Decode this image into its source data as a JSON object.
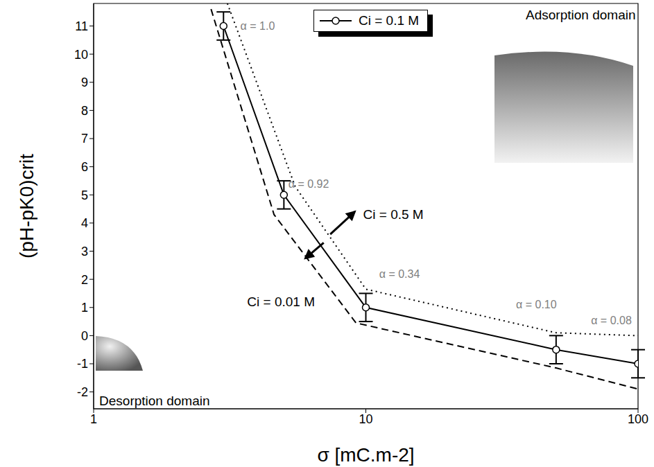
{
  "chart_data": {
    "type": "line",
    "log": "x",
    "grid": false,
    "legend": "top",
    "xlabel": "σ [mC.m-2]",
    "ylabel": "(pH-pK0)crit",
    "xlim": [
      1,
      100
    ],
    "xticks": [
      1,
      10,
      100
    ],
    "ylim": [
      -2.6,
      11.8
    ],
    "yticks": [
      -2,
      -1,
      0,
      1,
      2,
      3,
      4,
      5,
      6,
      7,
      8,
      9,
      10,
      11
    ],
    "series": [
      {
        "name": "Ci = 0.1 M",
        "color": "#000000",
        "line_style": "solid",
        "marker": "circle",
        "x": [
          3,
          5,
          10,
          50,
          100
        ],
        "values": [
          11,
          5,
          1,
          -0.5,
          -1
        ],
        "errors": [
          0.5,
          0.5,
          0.5,
          0.5,
          0.5
        ]
      },
      {
        "name": "Ci = 0.5 M",
        "color": "#000000",
        "line_style": "dotted",
        "x": [
          3.1,
          5.5,
          10,
          50,
          100
        ],
        "values": [
          11.8,
          5.3,
          1.65,
          0.1,
          0
        ]
      },
      {
        "name": "Ci = 0.01 M",
        "color": "#000000",
        "line_style": "dashed",
        "x": [
          2.7,
          4.6,
          9.2,
          50,
          100
        ],
        "values": [
          11.6,
          4.3,
          0.45,
          -1.15,
          -1.9
        ]
      }
    ],
    "annotations": [
      {
        "text": "α = 1.0",
        "x": 3.4,
        "y": 11,
        "color": "#808080"
      },
      {
        "text": "α = 0.92",
        "x": 5.1,
        "y": 5.4,
        "color": "#808080"
      },
      {
        "text": "α = 0.34",
        "x": 11,
        "y": 2.2,
        "color": "#808080"
      },
      {
        "text": "α = 0.10",
        "x": 35,
        "y": 1.1,
        "color": "#808080"
      },
      {
        "text": "α = 0.08",
        "x": 66,
        "y": 0.55,
        "color": "#808080"
      },
      {
        "text": "Ci = 0.5 M",
        "x": 9.6,
        "y": 4.3,
        "color": "#000000",
        "arrow_from": [
          7.4,
          3.6
        ],
        "arrow_to": [
          9.1,
          4.4
        ]
      },
      {
        "text": "Ci = 0.01 M",
        "x": 3.6,
        "y": 1.2,
        "color": "#000000",
        "arrow_from": [
          7.0,
          3.3
        ],
        "arrow_to": [
          6.0,
          2.75
        ]
      },
      {
        "text": "Adsorption domain",
        "x": 38,
        "y": 11.4,
        "color": "#000000"
      },
      {
        "text": "Desorption domain",
        "x": 1.03,
        "y": -2.3,
        "color": "#000000"
      }
    ]
  }
}
